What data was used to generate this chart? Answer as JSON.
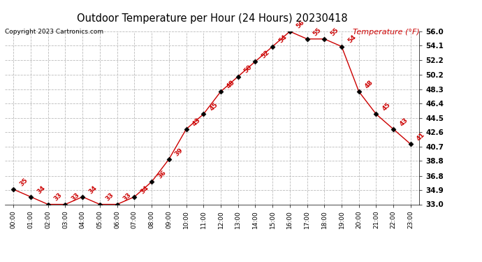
{
  "title": "Outdoor Temperature per Hour (24 Hours) 20230418",
  "copyright": "Copyright 2023 Cartronics.com",
  "legend_label": "Temperature (°F)",
  "hours": [
    "00:00",
    "01:00",
    "02:00",
    "03:00",
    "04:00",
    "05:00",
    "06:00",
    "07:00",
    "08:00",
    "09:00",
    "10:00",
    "11:00",
    "12:00",
    "13:00",
    "14:00",
    "15:00",
    "16:00",
    "17:00",
    "18:00",
    "19:00",
    "20:00",
    "21:00",
    "22:00",
    "23:00"
  ],
  "temperatures": [
    35,
    34,
    33,
    33,
    34,
    33,
    33,
    34,
    36,
    39,
    43,
    45,
    48,
    50,
    52,
    54,
    56,
    55,
    55,
    54,
    48,
    45,
    43,
    41
  ],
  "ylim_min": 33.0,
  "ylim_max": 56.0,
  "yticks": [
    33.0,
    34.9,
    36.8,
    38.8,
    40.7,
    42.6,
    44.5,
    46.4,
    48.3,
    50.2,
    52.2,
    54.1,
    56.0
  ],
  "line_color": "#cc0000",
  "marker": "^",
  "bg_color": "#ffffff",
  "grid_color": "#bbbbbb",
  "label_color": "#cc0000",
  "title_color": "#000000",
  "copyright_color": "#000000",
  "legend_color": "#cc0000"
}
